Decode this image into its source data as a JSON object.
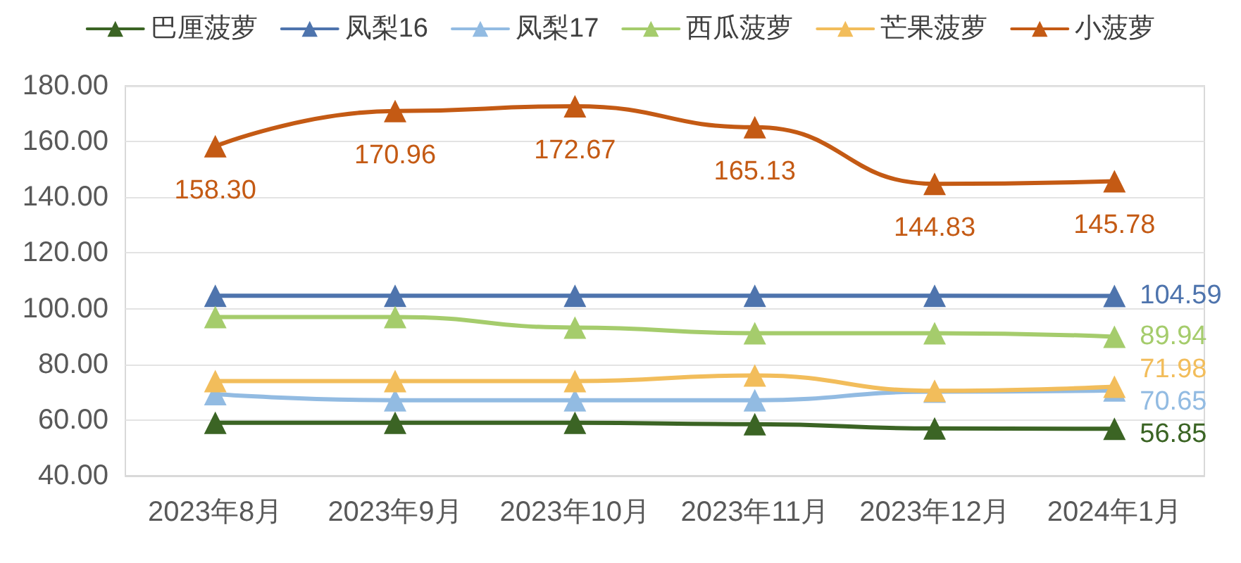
{
  "chart_data": {
    "type": "line",
    "categories": [
      "2023年8月",
      "2023年9月",
      "2023年10月",
      "2023年11月",
      "2023年12月",
      "2024年1月"
    ],
    "series": [
      {
        "name": "巴厘菠萝",
        "color": "#3b6424",
        "values": [
          59,
          59,
          59,
          58.5,
          57,
          56.85
        ],
        "value_labels": [
          null,
          null,
          null,
          null,
          null,
          "56.85"
        ]
      },
      {
        "name": "凤梨16",
        "color": "#4e74ad",
        "values": [
          104.6,
          104.6,
          104.6,
          104.6,
          104.6,
          104.59
        ],
        "value_labels": [
          null,
          null,
          null,
          null,
          null,
          "104.59"
        ]
      },
      {
        "name": "凤梨17",
        "color": "#92bbe2",
        "values": [
          69.3,
          67.1,
          67.1,
          67.1,
          70.2,
          70.65
        ],
        "value_labels": [
          null,
          null,
          null,
          null,
          null,
          "70.65"
        ]
      },
      {
        "name": "西瓜菠萝",
        "color": "#a5cc6c",
        "values": [
          97,
          97,
          93.2,
          91.2,
          91.2,
          89.94
        ],
        "value_labels": [
          null,
          null,
          null,
          null,
          null,
          "89.94"
        ]
      },
      {
        "name": "芒果菠萝",
        "color": "#f2bd5b",
        "values": [
          74,
          74,
          74,
          76,
          70.5,
          71.98
        ],
        "value_labels": [
          null,
          null,
          null,
          null,
          null,
          "71.98"
        ]
      },
      {
        "name": "小菠萝",
        "color": "#c45a14",
        "values": [
          158.3,
          170.96,
          172.67,
          165.13,
          144.83,
          145.78
        ],
        "value_labels": [
          "158.30",
          "170.96",
          "172.67",
          "165.13",
          "144.83",
          "145.78"
        ]
      }
    ],
    "ylim": [
      40,
      180
    ],
    "yticks": [
      {
        "value": 40,
        "label": "40.00"
      },
      {
        "value": 60,
        "label": "60.00"
      },
      {
        "value": 80,
        "label": "80.00"
      },
      {
        "value": 100,
        "label": "100.00"
      },
      {
        "value": 120,
        "label": "120.00"
      },
      {
        "value": 140,
        "label": "140.00"
      },
      {
        "value": 160,
        "label": "160.00"
      },
      {
        "value": 180,
        "label": "180.00"
      }
    ],
    "grid": "y",
    "legend": "top",
    "marker": "triangle",
    "line_style": "solid"
  }
}
